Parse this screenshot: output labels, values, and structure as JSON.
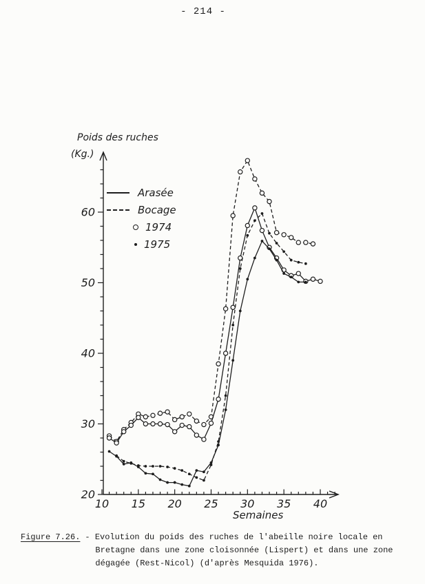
{
  "page": {
    "number": "- 214 -"
  },
  "colors": {
    "ink": "#1d1d1d",
    "paper": "#fcfcfa"
  },
  "chart": {
    "y_axis_title_line1": "Poids des ruches",
    "y_axis_title_line2": "(Kg.)",
    "x_axis_title": "Semaines",
    "legend": [
      {
        "label": "Arasée",
        "line": "solid"
      },
      {
        "label": "Bocage",
        "line": "dashed"
      },
      {
        "label": "1974",
        "marker": "open-circle"
      },
      {
        "label": "1975",
        "marker": "filled-dot"
      }
    ]
  },
  "chart_data": {
    "type": "line",
    "title": "Poids des ruches (Kg.)",
    "xlabel": "Semaines",
    "ylabel": "Poids des ruches (Kg.)",
    "xlim": [
      10,
      42.5
    ],
    "ylim": [
      20,
      68.5
    ],
    "x_ticks": [
      10,
      15,
      20,
      25,
      30,
      35,
      40
    ],
    "y_ticks": [
      20,
      30,
      40,
      50,
      60
    ],
    "x_minor_step": 1,
    "y_minor_step": 2,
    "grid": false,
    "legend_position": "upper-left-inside",
    "x": [
      11,
      12,
      13,
      14,
      15,
      16,
      17,
      18,
      19,
      20,
      21,
      22,
      23,
      24,
      25,
      26,
      27,
      28,
      29,
      30,
      31,
      32,
      33,
      34,
      35,
      36,
      37,
      38,
      39,
      40
    ],
    "series": [
      {
        "id": "bocage-1974",
        "name": "Bocage 1974",
        "zone": "Bocage",
        "year": 1974,
        "line": "dashed",
        "marker": "open-circle",
        "values": [
          28.3,
          27.5,
          29.2,
          30.2,
          31.4,
          31.0,
          31.2,
          31.5,
          31.7,
          30.6,
          31.0,
          31.4,
          30.4,
          29.9,
          31.0,
          38.5,
          46.3,
          59.5,
          65.7,
          67.3,
          64.7,
          62.7,
          61.5,
          57.1,
          56.8,
          56.4,
          55.7,
          55.7,
          55.5,
          null
        ]
      },
      {
        "id": "arasee-1974",
        "name": "Arasée 1974",
        "zone": "Arasée",
        "year": 1974,
        "line": "solid",
        "marker": "open-circle",
        "values": [
          28.0,
          27.3,
          28.9,
          29.8,
          30.9,
          30.0,
          30.0,
          30.0,
          29.9,
          28.9,
          29.8,
          29.6,
          28.4,
          27.8,
          30.1,
          33.5,
          40.0,
          46.5,
          53.5,
          58.1,
          60.6,
          57.4,
          55.0,
          53.5,
          51.8,
          51.0,
          51.3,
          50.2,
          50.5,
          50.2
        ]
      },
      {
        "id": "bocage-1975",
        "name": "Bocage 1975",
        "zone": "Bocage",
        "year": 1975,
        "line": "dashed",
        "marker": "filled-dot",
        "values": [
          null,
          25.5,
          24.7,
          24.4,
          24.1,
          24.0,
          24.0,
          24.0,
          23.9,
          23.7,
          23.4,
          22.9,
          22.4,
          22.0,
          24.2,
          27.5,
          34.0,
          44.0,
          52.0,
          56.7,
          58.8,
          59.8,
          57.0,
          55.6,
          54.4,
          53.2,
          52.9,
          52.7,
          null,
          null
        ]
      },
      {
        "id": "arasee-1975",
        "name": "Arasée 1975",
        "zone": "Arasée",
        "year": 1975,
        "line": "solid",
        "marker": "filled-dot",
        "values": [
          26.1,
          25.4,
          24.3,
          24.5,
          23.9,
          23.0,
          22.9,
          22.1,
          21.7,
          21.7,
          21.4,
          21.2,
          23.4,
          23.2,
          24.5,
          27.0,
          32.0,
          39.0,
          46.0,
          50.5,
          53.5,
          55.9,
          54.8,
          53.2,
          51.3,
          50.8,
          50.1,
          50.1,
          null,
          null
        ]
      }
    ]
  },
  "caption": {
    "figure_label": "Figure 7.26.",
    "lines": [
      "- Evolution du poids des ruches de l'abeille noire locale en",
      "Bretagne dans une zone cloisonnée (Lispert) et dans une zone",
      "dégagée (Rest-Nicol) (d'après Mesquida 1976)."
    ]
  }
}
